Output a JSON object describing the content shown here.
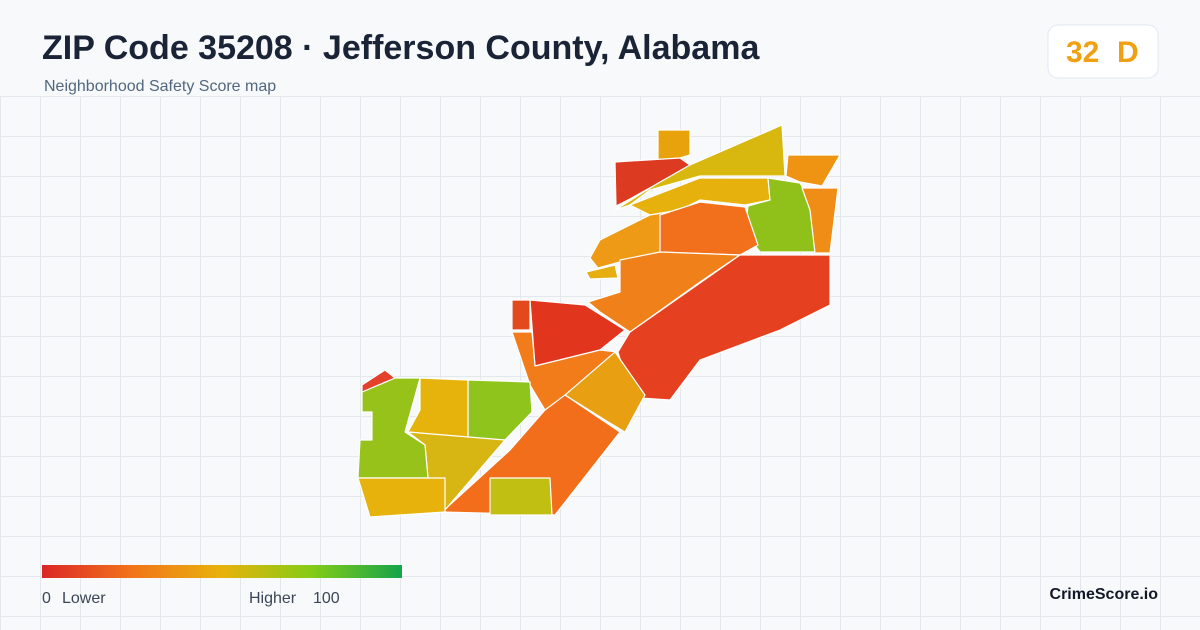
{
  "header": {
    "title": "ZIP Code 35208 · Jefferson County, Alabama",
    "subtitle": "Neighborhood Safety Score map"
  },
  "score": {
    "value": 32,
    "grade": "D"
  },
  "legend": {
    "min": 0,
    "min_label": "Lower",
    "max_label": "Higher",
    "max": 100
  },
  "brand": "CrimeScore.io"
}
